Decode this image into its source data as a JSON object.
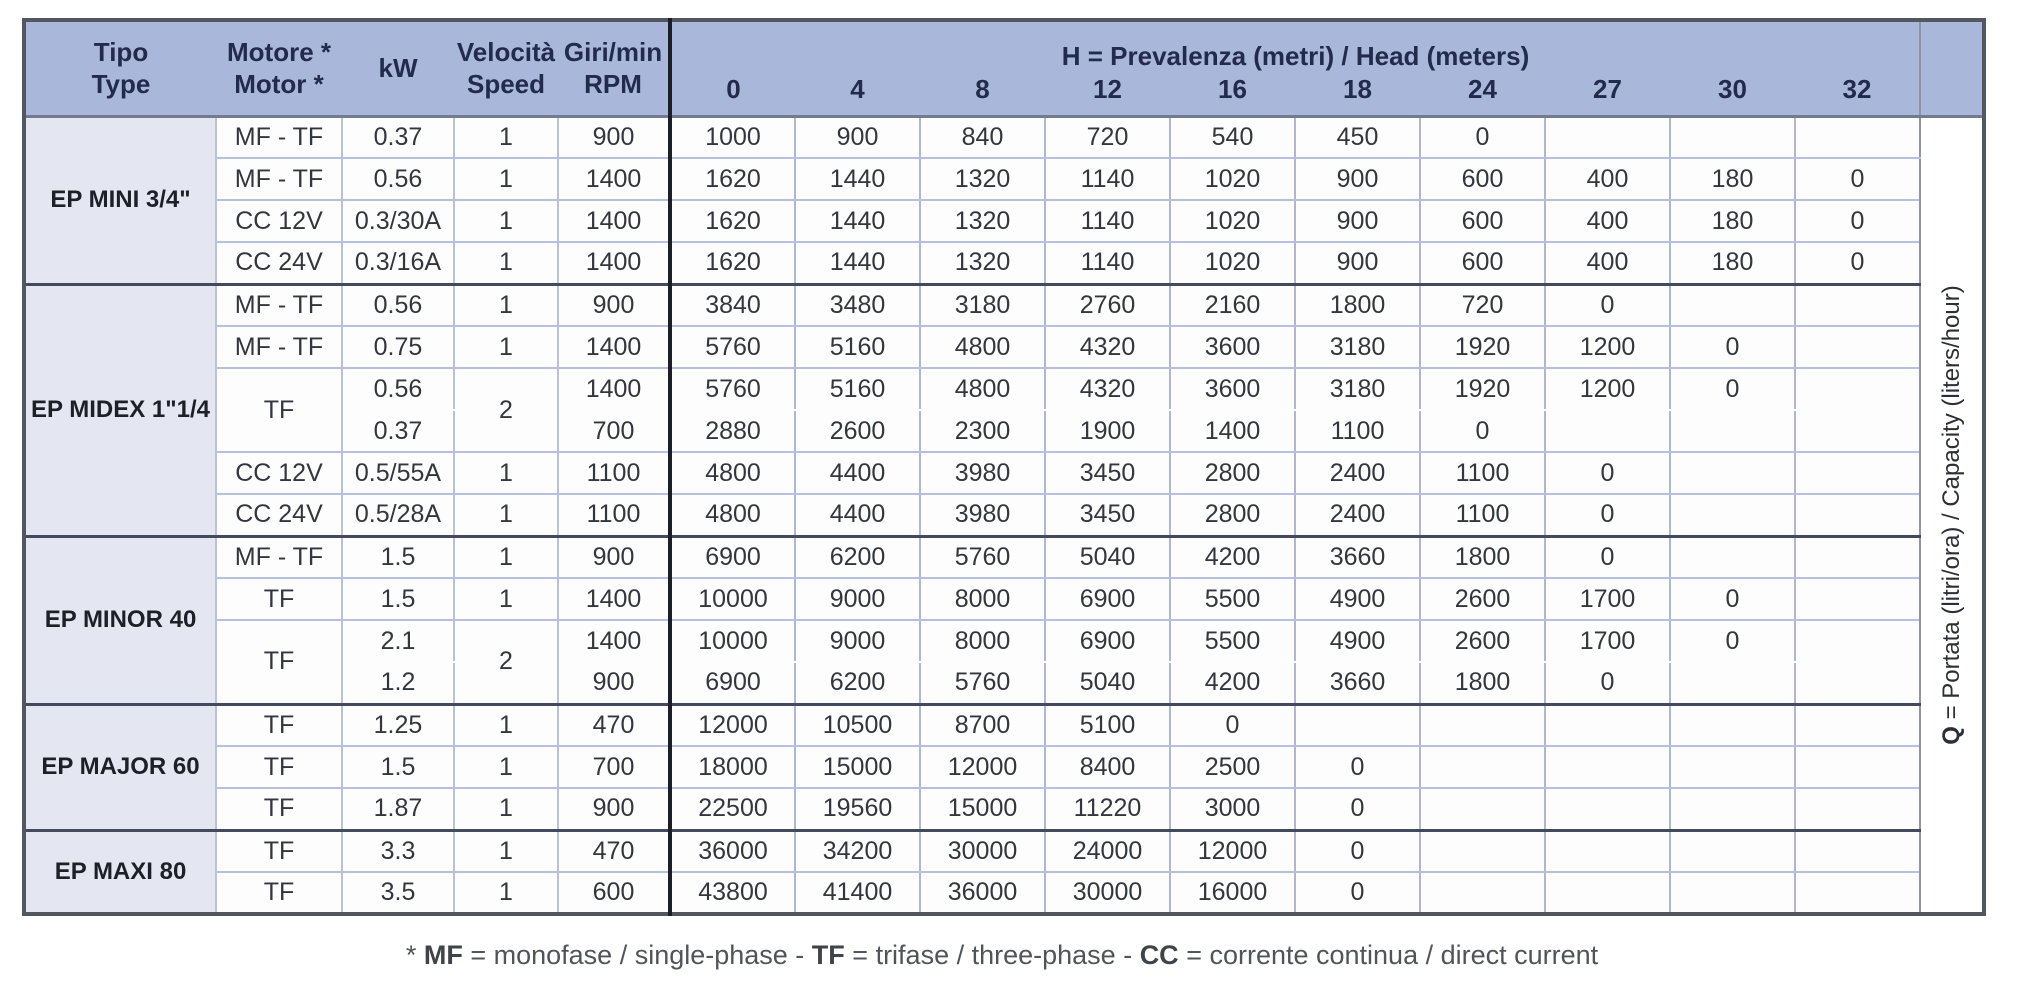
{
  "table": {
    "headers": {
      "tipo": [
        "Tipo",
        "Type"
      ],
      "motore": [
        "Motore *",
        "Motor *"
      ],
      "kw": "kW",
      "velocita": [
        "Velocità",
        "Speed"
      ],
      "rpm": [
        "Giri/min",
        "RPM"
      ],
      "head_bold": "H",
      "head_rest": " = Prevalenza (metri) / Head (meters)",
      "head_columns": [
        "0",
        "4",
        "8",
        "12",
        "16",
        "18",
        "24",
        "27",
        "30",
        "32"
      ]
    },
    "q_label": {
      "bold": "Q",
      "rest": " = Portata (litri/ora) / Capacity (liters/hour)"
    },
    "groups": [
      {
        "type": "EP MINI 3/4\"",
        "rows": [
          {
            "motor": "MF - TF",
            "kw": "0.37",
            "speed": "1",
            "rpm": "900",
            "values": [
              "1000",
              "900",
              "840",
              "720",
              "540",
              "450",
              "0",
              "",
              "",
              ""
            ]
          },
          {
            "motor": "MF - TF",
            "kw": "0.56",
            "speed": "1",
            "rpm": "1400",
            "values": [
              "1620",
              "1440",
              "1320",
              "1140",
              "1020",
              "900",
              "600",
              "400",
              "180",
              "0"
            ]
          },
          {
            "motor": "CC 12V",
            "kw": "0.3/30A",
            "speed": "1",
            "rpm": "1400",
            "values": [
              "1620",
              "1440",
              "1320",
              "1140",
              "1020",
              "900",
              "600",
              "400",
              "180",
              "0"
            ]
          },
          {
            "motor": "CC 24V",
            "kw": "0.3/16A",
            "speed": "1",
            "rpm": "1400",
            "values": [
              "1620",
              "1440",
              "1320",
              "1140",
              "1020",
              "900",
              "600",
              "400",
              "180",
              "0"
            ]
          }
        ]
      },
      {
        "type": "EP MIDEX 1\"1/4",
        "rows": [
          {
            "motor": "MF - TF",
            "kw": "0.56",
            "speed": "1",
            "rpm": "900",
            "values": [
              "3840",
              "3480",
              "3180",
              "2760",
              "2160",
              "1800",
              "720",
              "0",
              "",
              ""
            ]
          },
          {
            "motor": "MF - TF",
            "kw": "0.75",
            "speed": "1",
            "rpm": "1400",
            "values": [
              "5760",
              "5160",
              "4800",
              "4320",
              "3600",
              "3180",
              "1920",
              "1200",
              "0",
              ""
            ]
          },
          {
            "motor": "TF",
            "speed": "2",
            "sub": [
              {
                "kw": "0.56",
                "rpm": "1400",
                "values": [
                  "5760",
                  "5160",
                  "4800",
                  "4320",
                  "3600",
                  "3180",
                  "1920",
                  "1200",
                  "0",
                  ""
                ]
              },
              {
                "kw": "0.37",
                "rpm": "700",
                "values": [
                  "2880",
                  "2600",
                  "2300",
                  "1900",
                  "1400",
                  "1100",
                  "0",
                  "",
                  "",
                  ""
                ]
              }
            ]
          },
          {
            "motor": "CC 12V",
            "kw": "0.5/55A",
            "speed": "1",
            "rpm": "1100",
            "values": [
              "4800",
              "4400",
              "3980",
              "3450",
              "2800",
              "2400",
              "1100",
              "0",
              "",
              ""
            ]
          },
          {
            "motor": "CC 24V",
            "kw": "0.5/28A",
            "speed": "1",
            "rpm": "1100",
            "values": [
              "4800",
              "4400",
              "3980",
              "3450",
              "2800",
              "2400",
              "1100",
              "0",
              "",
              ""
            ]
          }
        ]
      },
      {
        "type": "EP MINOR 40",
        "rows": [
          {
            "motor": "MF - TF",
            "kw": "1.5",
            "speed": "1",
            "rpm": "900",
            "values": [
              "6900",
              "6200",
              "5760",
              "5040",
              "4200",
              "3660",
              "1800",
              "0",
              "",
              ""
            ]
          },
          {
            "motor": "TF",
            "kw": "1.5",
            "speed": "1",
            "rpm": "1400",
            "values": [
              "10000",
              "9000",
              "8000",
              "6900",
              "5500",
              "4900",
              "2600",
              "1700",
              "0",
              ""
            ]
          },
          {
            "motor": "TF",
            "speed": "2",
            "sub": [
              {
                "kw": "2.1",
                "rpm": "1400",
                "values": [
                  "10000",
                  "9000",
                  "8000",
                  "6900",
                  "5500",
                  "4900",
                  "2600",
                  "1700",
                  "0",
                  ""
                ]
              },
              {
                "kw": "1.2",
                "rpm": "900",
                "values": [
                  "6900",
                  "6200",
                  "5760",
                  "5040",
                  "4200",
                  "3660",
                  "1800",
                  "0",
                  "",
                  ""
                ]
              }
            ]
          }
        ]
      },
      {
        "type": "EP MAJOR 60",
        "rows": [
          {
            "motor": "TF",
            "kw": "1.25",
            "speed": "1",
            "rpm": "470",
            "values": [
              "12000",
              "10500",
              "8700",
              "5100",
              "0",
              "",
              "",
              "",
              "",
              ""
            ]
          },
          {
            "motor": "TF",
            "kw": "1.5",
            "speed": "1",
            "rpm": "700",
            "values": [
              "18000",
              "15000",
              "12000",
              "8400",
              "2500",
              "0",
              "",
              "",
              "",
              ""
            ]
          },
          {
            "motor": "TF",
            "kw": "1.87",
            "speed": "1",
            "rpm": "900",
            "values": [
              "22500",
              "19560",
              "15000",
              "11220",
              "3000",
              "0",
              "",
              "",
              "",
              ""
            ]
          }
        ]
      },
      {
        "type": "EP MAXI 80",
        "rows": [
          {
            "motor": "TF",
            "kw": "3.3",
            "speed": "1",
            "rpm": "470",
            "values": [
              "36000",
              "34200",
              "30000",
              "24000",
              "12000",
              "0",
              "",
              "",
              "",
              ""
            ]
          },
          {
            "motor": "TF",
            "kw": "3.5",
            "speed": "1",
            "rpm": "600",
            "values": [
              "43800",
              "41400",
              "36000",
              "30000",
              "16000",
              "0",
              "",
              "",
              "",
              ""
            ]
          }
        ]
      }
    ]
  },
  "footnote": {
    "parts": [
      "* ",
      "MF",
      " = monofase / single-phase - ",
      "TF",
      " = trifase / three-phase - ",
      "CC",
      " = corrente continua / direct current"
    ]
  }
}
